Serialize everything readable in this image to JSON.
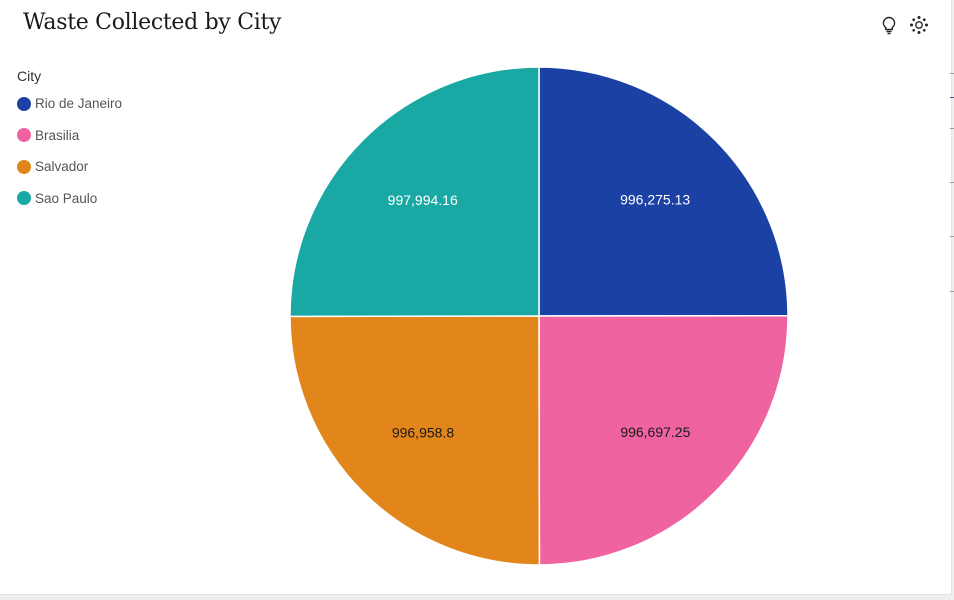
{
  "header": {
    "title": "Waste Collected by City",
    "insights_icon": "lightbulb-icon",
    "ai_icon": "sparkle-dots-icon"
  },
  "legend": {
    "title": "City"
  },
  "chart_data": {
    "type": "pie",
    "title": "Waste Collected by City",
    "legend_title": "City",
    "legend_position": "top-left",
    "categories": [
      "Rio de Janeiro",
      "Brasilia",
      "Salvador",
      "Sao Paulo"
    ],
    "values": [
      996275.13,
      996697.25,
      996958.8,
      997994.16
    ],
    "labels": [
      "996,275.13",
      "996,697.25",
      "996,958.8",
      "997,994.16"
    ],
    "colors": [
      "#1a41a3",
      "#ef64a0",
      "#e2851b",
      "#19a8a3"
    ],
    "label_colors": [
      "#ffffff",
      "#1a1a1a",
      "#1a1a1a",
      "#ffffff"
    ]
  }
}
